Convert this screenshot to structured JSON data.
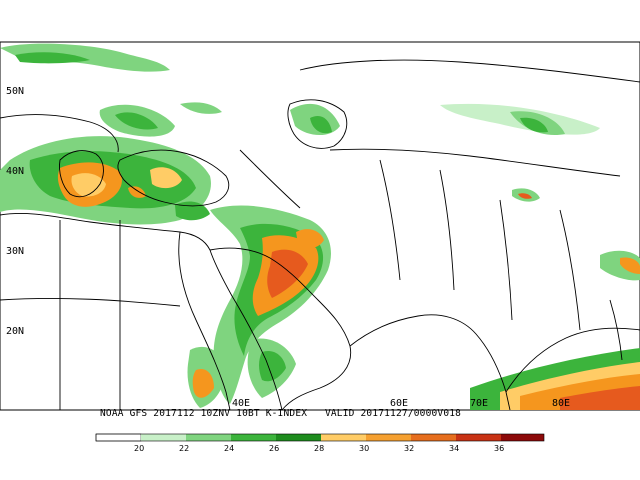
{
  "map": {
    "lat_labels": [
      "50N",
      "40N",
      "30N",
      "20N"
    ],
    "lon_labels": [
      "40E",
      "60E",
      "70E",
      "80E"
    ],
    "caption": "NOAA GFS 2017112 10ZNV 10BT K-INDEX   VALID 20171127/0000V018",
    "colors": {
      "c20": "#ffffff",
      "c22": "#c8f0c8",
      "c24": "#7fd47f",
      "c26": "#3cb43c",
      "c28": "#1e8c1e",
      "c30": "#ffcc66",
      "c32": "#f5961e",
      "c34": "#e65a1e",
      "c36": "#b41e1e",
      "c38": "#8c0a0a"
    }
  },
  "colorbar": {
    "labels": [
      "20",
      "22",
      "24",
      "26",
      "28",
      "30",
      "32",
      "34",
      "36"
    ]
  }
}
